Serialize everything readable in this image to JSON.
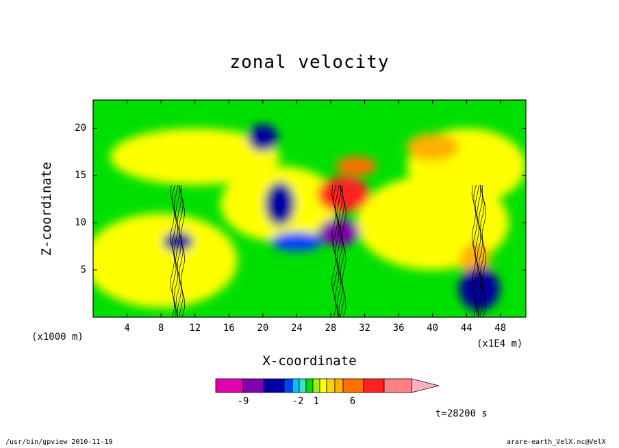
{
  "chart_data": {
    "type": "heatmap",
    "title": "zonal velocity",
    "xlabel": "X-coordinate",
    "ylabel": "Z-coordinate",
    "x_unit_left": "(x1000 m)",
    "x_unit_right": "(x1E4 m)",
    "xlim": [
      0,
      51
    ],
    "ylim": [
      0,
      23
    ],
    "x_ticks": [
      4,
      8,
      12,
      16,
      20,
      24,
      28,
      32,
      36,
      40,
      44,
      48
    ],
    "y_ticks": [
      5,
      10,
      15,
      20
    ],
    "x_tick_labels": [
      "4",
      "8",
      "12",
      "16",
      "20",
      "24",
      "28",
      "32",
      "36",
      "40",
      "44",
      "48"
    ],
    "y_tick_labels": [
      "5",
      "10",
      "15",
      "20"
    ],
    "colorbar": {
      "colors": [
        "#e000b0",
        "#8000b0",
        "#0000a0",
        "#0040ff",
        "#00c0ff",
        "#40e0c0",
        "#00e000",
        "#a0f000",
        "#ffff00",
        "#ffd000",
        "#ffb000",
        "#ff7000",
        "#ff2020",
        "#ff8080",
        "#ffb0c0"
      ],
      "labels": [
        "-9",
        "-2",
        "1",
        "6"
      ]
    },
    "features": [
      {
        "x": 10,
        "z": 8,
        "value": -6
      },
      {
        "x": 29,
        "z": 9,
        "value": -9
      },
      {
        "x": 29.5,
        "z": 13,
        "value": 9
      },
      {
        "x": 22,
        "z": 12,
        "value": -6
      },
      {
        "x": 31,
        "z": 16,
        "value": 5
      },
      {
        "x": 40,
        "z": 18,
        "value": 4
      },
      {
        "x": 45,
        "z": 6,
        "value": 3
      },
      {
        "x": 45.5,
        "z": 3,
        "value": -7
      },
      {
        "x": 24,
        "z": 8,
        "value": -3
      },
      {
        "x": 20,
        "z": 19,
        "value": -7
      }
    ]
  },
  "time_label": "t=28200 s",
  "footer": {
    "left": "/usr/bin/gpview   2010-11-19",
    "right": "arare-earth_VelX.nc@VelX"
  }
}
